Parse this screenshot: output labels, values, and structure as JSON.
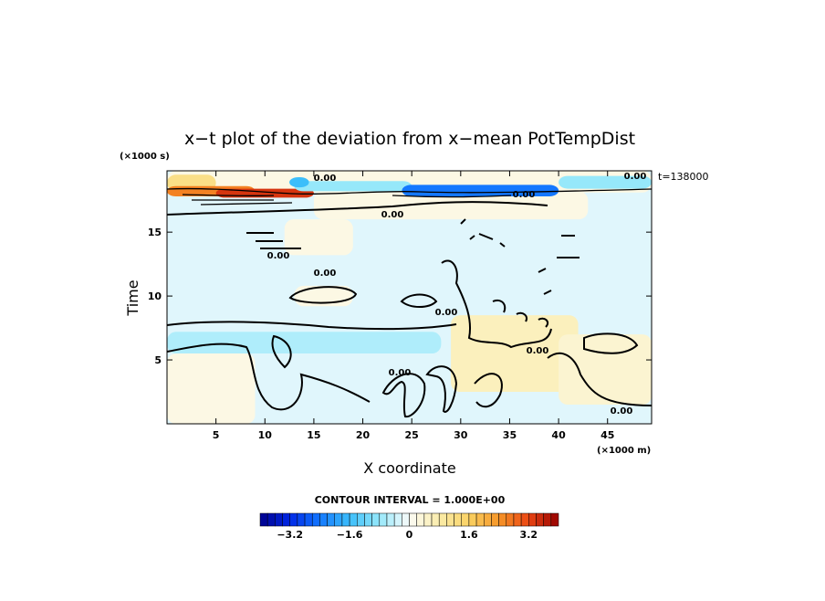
{
  "chart_data": {
    "type": "heatmap",
    "title": "x−t plot of the deviation from x−mean PotTempDist",
    "xlabel": "X coordinate",
    "ylabel": "Time",
    "x_unit": "(×1000 m)",
    "y_unit": "(×1000 s)",
    "time_label": "t=138000",
    "x_ticks": [
      5,
      10,
      15,
      20,
      25,
      30,
      35,
      40,
      45
    ],
    "y_ticks": [
      5,
      10,
      15
    ],
    "xlim": [
      0,
      49.5
    ],
    "ylim": [
      0,
      19.8
    ],
    "contour_interval_text": "CONTOUR INTERVAL = 1.000E+00",
    "contour_label": "0.00",
    "colorbar": {
      "range": [
        -4.0,
        4.0
      ],
      "step": 0.2,
      "tick_values": [
        -3.2,
        -1.6,
        0,
        1.6,
        3.2
      ],
      "tick_labels": [
        "−3.2",
        "−1.6",
        "0",
        "1.6",
        "3.2"
      ]
    },
    "regions": [
      {
        "x": [
          0,
          49.5
        ],
        "y": [
          0,
          19.8
        ],
        "value": -0.2
      },
      {
        "x": [
          12,
          19
        ],
        "y": [
          13.2,
          16
        ],
        "value": 0.2
      },
      {
        "x": [
          15,
          43
        ],
        "y": [
          16.0,
          18.2
        ],
        "value": 0.2
      },
      {
        "x": [
          13,
          19
        ],
        "y": [
          9.2,
          10.8
        ],
        "value": 0.2
      },
      {
        "x": [
          0,
          28
        ],
        "y": [
          5.5,
          7.2
        ],
        "value": -0.6
      },
      {
        "x": [
          0,
          9
        ],
        "y": [
          0,
          5.5
        ],
        "value": 0.2
      },
      {
        "x": [
          29,
          42
        ],
        "y": [
          2.5,
          8.5
        ],
        "value": 0.6
      },
      {
        "x": [
          40,
          49.5
        ],
        "y": [
          1.5,
          7.0
        ],
        "value": 0.4
      },
      {
        "x": [
          0,
          49.5
        ],
        "y": [
          18.1,
          19.8
        ],
        "value": 0.2
      },
      {
        "x": [
          0,
          5
        ],
        "y": [
          18.2,
          19.5
        ],
        "value": 1.2
      },
      {
        "x": [
          0,
          9
        ],
        "y": [
          17.8,
          18.6
        ],
        "value": 2.6
      },
      {
        "x": [
          5,
          15
        ],
        "y": [
          17.7,
          18.4
        ],
        "value": 3.4
      },
      {
        "x": [
          13,
          25
        ],
        "y": [
          18.2,
          19.0
        ],
        "value": -0.8
      },
      {
        "x": [
          24,
          40
        ],
        "y": [
          17.8,
          18.7
        ],
        "value": -2.4
      },
      {
        "x": [
          40,
          49.5
        ],
        "y": [
          18.4,
          19.4
        ],
        "value": -0.8
      },
      {
        "x": [
          12.5,
          14.5
        ],
        "y": [
          18.5,
          19.3
        ],
        "value": -1.6
      }
    ]
  }
}
